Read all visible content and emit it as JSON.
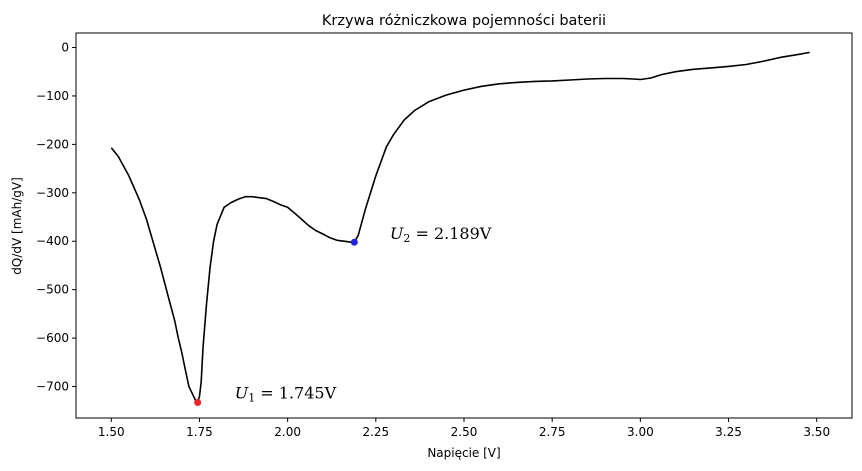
{
  "chart_data": {
    "type": "line",
    "title": "Krzywa różniczkowa pojemności baterii",
    "xlabel": "Napięcie [V]",
    "ylabel": "dQ/dV [mAh/gV]",
    "xlim": [
      1.4,
      3.6
    ],
    "ylim": [
      -765,
      30
    ],
    "xticks": [
      1.5,
      1.75,
      2.0,
      2.25,
      2.5,
      2.75,
      3.0,
      3.25,
      3.5
    ],
    "xtick_labels": [
      "1.50",
      "1.75",
      "2.00",
      "2.25",
      "2.50",
      "2.75",
      "3.00",
      "3.25",
      "3.50"
    ],
    "yticks": [
      0,
      -100,
      -200,
      -300,
      -400,
      -500,
      -600,
      -700
    ],
    "ytick_labels": [
      "0",
      "−100",
      "−200",
      "−300",
      "−400",
      "−500",
      "−600",
      "−700"
    ],
    "grid": false,
    "series": [
      {
        "color": "#000000",
        "x": [
          1.5,
          1.52,
          1.55,
          1.58,
          1.6,
          1.62,
          1.64,
          1.66,
          1.68,
          1.69,
          1.7,
          1.71,
          1.72,
          1.73,
          1.74,
          1.745,
          1.75,
          1.755,
          1.76,
          1.77,
          1.78,
          1.79,
          1.8,
          1.82,
          1.84,
          1.86,
          1.88,
          1.9,
          1.92,
          1.94,
          1.96,
          1.98,
          2.0,
          2.02,
          2.04,
          2.06,
          2.08,
          2.1,
          2.12,
          2.14,
          2.16,
          2.18,
          2.189,
          2.2,
          2.22,
          2.25,
          2.28,
          2.3,
          2.33,
          2.36,
          2.4,
          2.45,
          2.5,
          2.55,
          2.6,
          2.65,
          2.7,
          2.75,
          2.8,
          2.85,
          2.9,
          2.95,
          2.98,
          3.0,
          3.03,
          3.06,
          3.1,
          3.15,
          3.2,
          3.25,
          3.3,
          3.35,
          3.4,
          3.45,
          3.48
        ],
        "y": [
          -207,
          -225,
          -265,
          -315,
          -355,
          -405,
          -455,
          -510,
          -565,
          -600,
          -630,
          -665,
          -700,
          -715,
          -730,
          -733,
          -720,
          -690,
          -620,
          -530,
          -455,
          -400,
          -365,
          -330,
          -320,
          -313,
          -308,
          -308,
          -310,
          -312,
          -318,
          -325,
          -330,
          -342,
          -355,
          -368,
          -378,
          -385,
          -393,
          -398,
          -400,
          -402,
          -402,
          -388,
          -335,
          -265,
          -205,
          -180,
          -150,
          -130,
          -112,
          -98,
          -88,
          -80,
          -75,
          -72,
          -70,
          -69,
          -67,
          -65,
          -64,
          -64,
          -65,
          -66,
          -63,
          -56,
          -50,
          -45,
          -42,
          -39,
          -35,
          -28,
          -20,
          -14,
          -10
        ]
      }
    ],
    "points": [
      {
        "x": 1.745,
        "y": -733,
        "color": "#e8262b"
      },
      {
        "x": 2.189,
        "y": -402,
        "color": "#1f22e0"
      }
    ],
    "annotations": [
      {
        "sym": "U",
        "sub": "1",
        "eq": " = 1.745V",
        "x": 1.85,
        "y": -725
      },
      {
        "sym": "U",
        "sub": "2",
        "eq": " = 2.189V",
        "x": 2.29,
        "y": -395
      }
    ]
  }
}
